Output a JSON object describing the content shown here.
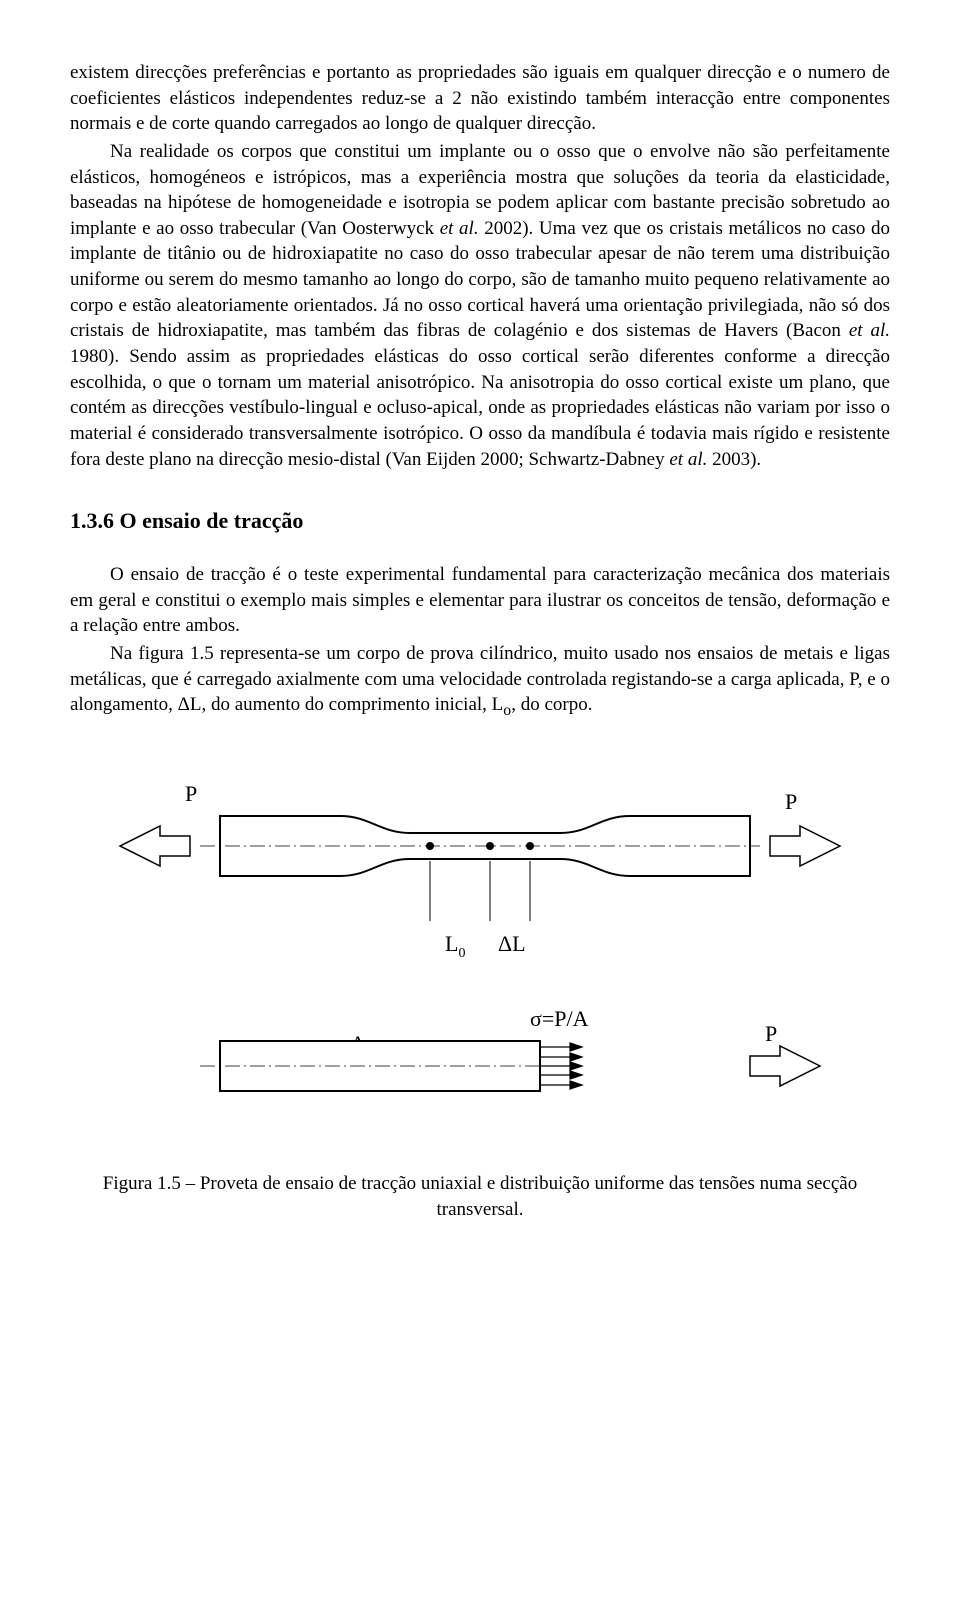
{
  "para1": "existem direcções preferências e portanto as propriedades são iguais em qualquer direcção e o numero de coeficientes elásticos independentes reduz-se a 2 não existindo também interacção entre componentes normais e de corte quando carregados ao longo de qualquer direcção.",
  "para2": "Na realidade os corpos que constitui um implante ou o osso que o envolve não são perfeitamente elásticos, homogéneos e istrópicos, mas a experiência mostra que soluções da teoria da elasticidade, baseadas na hipótese de homogeneidade e isotropia se podem aplicar com bastante precisão sobretudo ao implante e ao osso trabecular (Van Oosterwyck et al. 2002). Uma vez que os cristais metálicos no caso do implante de titânio ou de hidroxiapatite no caso do osso trabecular apesar de não terem uma distribuição uniforme ou serem do mesmo tamanho ao longo do corpo, são de tamanho muito pequeno relativamente ao corpo e estão aleatoriamente orientados. Já no osso cortical haverá uma orientação privilegiada, não só dos cristais de hidroxiapatite, mas também das fibras de colagénio e dos sistemas de Havers (Bacon et al. 1980). Sendo assim as propriedades elásticas do osso cortical serão diferentes conforme a direcção escolhida, o que o tornam um material anisotrópico. Na anisotropia do osso cortical existe um plano, que contém as direcções vestíbulo-lingual e ocluso-apical, onde as propriedades elásticas não variam por isso o material é considerado transversalmente isotrópico. O osso da mandíbula é todavia mais rígido e resistente fora deste plano na direcção mesio-distal (Van Eijden 2000; Schwartz-Dabney et al. 2003).",
  "heading": "1.3.6 O ensaio de tracção",
  "para3": "O ensaio de tracção é o teste experimental fundamental para caracterização mecânica dos materiais em geral e constitui o exemplo mais simples e elementar para ilustrar os conceitos de tensão, deformação e a relação entre ambos.",
  "para4": "Na figura 1.5 representa-se um corpo de prova cilíndrico, muito usado nos ensaios de metais e ligas metálicas, que é carregado axialmente com uma velocidade controlada registando-se a carga aplicada, P, e o alongamento, ΔL, do aumento do comprimento inicial, Lo, do corpo.",
  "caption": "Figura 1.5 – Proveta de ensaio de tracção uniaxial e distribuição uniforme das tensões numa secção transversal.",
  "figure": {
    "stroke": "#000000",
    "fill": "#ffffff",
    "labels": {
      "P": "P",
      "L0": "L",
      "L0sub": "0",
      "dL": "ΔL",
      "A": "A",
      "sigma": "σ=P/A"
    }
  }
}
